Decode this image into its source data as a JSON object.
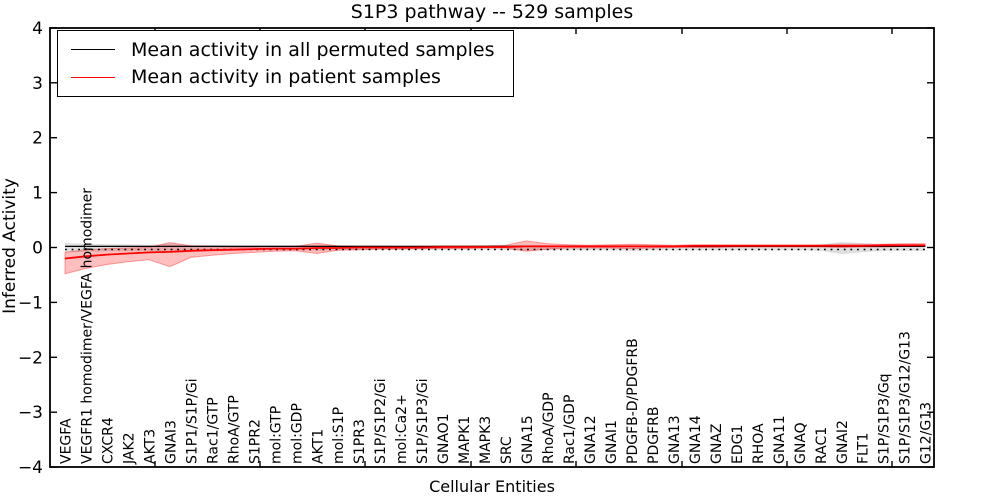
{
  "chart_data": {
    "type": "line",
    "title": "S1P3 pathway -- 529 samples",
    "xlabel": "Cellular Entities",
    "ylabel": "Inferred Activity",
    "ylim": [
      -4,
      4
    ],
    "ytick_labels": [
      "4",
      "3",
      "2",
      "1",
      "0",
      "−1",
      "−2",
      "−3",
      "−4"
    ],
    "ytick_values": [
      4,
      3,
      2,
      1,
      0,
      -1,
      -2,
      -3,
      -4
    ],
    "grid": false,
    "zero_line": {
      "value": 0,
      "style": "dotted",
      "color": "#000000"
    },
    "legend": {
      "position": "upper left",
      "entries": [
        {
          "label": "Mean activity in all permuted samples",
          "color": "#000000"
        },
        {
          "label": "Mean activity in patient samples",
          "color": "#ff0000"
        }
      ]
    },
    "categories": [
      "VEGFA",
      "VEGFR1 homodimer/VEGFA homodimer",
      "CXCR4",
      "JAK2",
      "AKT3",
      "GNAI3",
      "S1P1/S1P/Gi",
      "Rac1/GTP",
      "RhoA/GTP",
      "S1PR2",
      "mol:GTP",
      "mol:GDP",
      "AKT1",
      "mol:S1P",
      "S1PR3",
      "S1P/S1P2/Gi",
      "mol:Ca2+",
      "S1P/S1P3/Gi",
      "GNAO1",
      "MAPK1",
      "MAPK3",
      "SRC",
      "GNA15",
      "RhoA/GDP",
      "Rac1/GDP",
      "GNA12",
      "GNAI1",
      "PDGFB-D/PDGFRB",
      "PDGFRB",
      "GNA13",
      "GNA14",
      "GNAZ",
      "EDG1",
      "RHOA",
      "GNA11",
      "GNAQ",
      "RAC1",
      "GNAI2",
      "FLT1",
      "S1P/S1P3/Gq",
      "S1P/S1P3/G12/G13",
      "G12/G13"
    ],
    "series": [
      {
        "name": "Mean activity in all permuted samples",
        "color": "#000000",
        "band_color": "rgba(0,0,0,0.13)",
        "values": [
          0.02,
          0.02,
          0.02,
          0.02,
          0.02,
          0.02,
          0.02,
          0.02,
          0.02,
          0.02,
          0.02,
          0.02,
          0.02,
          0.02,
          0.02,
          0.02,
          0.02,
          0.02,
          0.02,
          0.02,
          0.02,
          0.02,
          0.02,
          0.02,
          0.02,
          0.02,
          0.02,
          0.02,
          0.02,
          0.02,
          0.02,
          0.02,
          0.02,
          0.02,
          0.02,
          0.02,
          0.02,
          0.02,
          0.02,
          0.02,
          0.02,
          0.02
        ],
        "band_upper": [
          0.08,
          0.07,
          0.06,
          0.06,
          0.05,
          0.07,
          0.05,
          0.05,
          0.04,
          0.04,
          0.04,
          0.04,
          0.05,
          0.04,
          0.04,
          0.04,
          0.03,
          0.03,
          0.03,
          0.03,
          0.03,
          0.04,
          0.05,
          0.04,
          0.04,
          0.04,
          0.04,
          0.05,
          0.04,
          0.04,
          0.04,
          0.04,
          0.04,
          0.04,
          0.04,
          0.04,
          0.05,
          0.1,
          0.08,
          0.05,
          0.05,
          0.05
        ],
        "band_lower": [
          -0.09,
          -0.08,
          -0.07,
          -0.07,
          -0.06,
          -0.08,
          -0.06,
          -0.06,
          -0.05,
          -0.05,
          -0.05,
          -0.05,
          -0.06,
          -0.05,
          -0.05,
          -0.04,
          -0.04,
          -0.04,
          -0.04,
          -0.04,
          -0.04,
          -0.04,
          -0.06,
          -0.05,
          -0.05,
          -0.05,
          -0.05,
          -0.06,
          -0.05,
          -0.05,
          -0.05,
          -0.05,
          -0.05,
          -0.05,
          -0.05,
          -0.05,
          -0.06,
          -0.12,
          -0.09,
          -0.06,
          -0.06,
          -0.06
        ]
      },
      {
        "name": "Mean activity in patient samples",
        "color": "#ff0000",
        "band_color": "rgba(255,0,0,0.25)",
        "values": [
          -0.2,
          -0.16,
          -0.13,
          -0.11,
          -0.09,
          -0.08,
          -0.06,
          -0.05,
          -0.04,
          -0.03,
          -0.02,
          -0.02,
          -0.01,
          -0.01,
          0.0,
          0.0,
          0.0,
          0.0,
          0.01,
          0.01,
          0.01,
          0.01,
          0.02,
          0.02,
          0.02,
          0.02,
          0.02,
          0.02,
          0.02,
          0.02,
          0.03,
          0.03,
          0.03,
          0.03,
          0.03,
          0.03,
          0.03,
          0.03,
          0.03,
          0.04,
          0.04,
          0.04
        ],
        "band_upper": [
          -0.09,
          -0.04,
          -0.02,
          -0.01,
          0.0,
          0.09,
          0.03,
          0.02,
          0.01,
          0.01,
          0.02,
          0.02,
          0.08,
          0.03,
          0.02,
          0.02,
          0.02,
          0.02,
          0.03,
          0.03,
          0.03,
          0.04,
          0.12,
          0.07,
          0.05,
          0.04,
          0.05,
          0.06,
          0.05,
          0.04,
          0.05,
          0.05,
          0.05,
          0.05,
          0.05,
          0.05,
          0.05,
          0.06,
          0.06,
          0.06,
          0.07,
          0.07
        ],
        "band_lower": [
          -0.48,
          -0.38,
          -0.31,
          -0.26,
          -0.22,
          -0.35,
          -0.18,
          -0.14,
          -0.11,
          -0.09,
          -0.07,
          -0.06,
          -0.11,
          -0.05,
          -0.04,
          -0.03,
          -0.03,
          -0.02,
          -0.02,
          -0.02,
          -0.01,
          -0.01,
          -0.07,
          -0.03,
          -0.01,
          -0.01,
          -0.01,
          -0.02,
          -0.01,
          0.0,
          0.0,
          0.0,
          0.01,
          0.01,
          0.01,
          0.01,
          0.01,
          0.0,
          0.01,
          0.01,
          0.02,
          0.02
        ]
      }
    ]
  }
}
